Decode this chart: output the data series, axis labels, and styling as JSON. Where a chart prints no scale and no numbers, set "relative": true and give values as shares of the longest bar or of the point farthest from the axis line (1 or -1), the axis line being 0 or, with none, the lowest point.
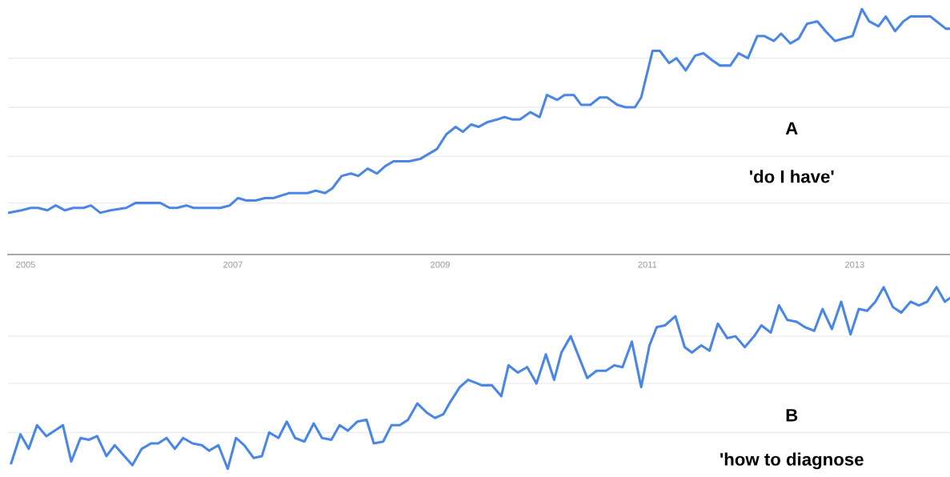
{
  "chart_data": [
    {
      "type": "line",
      "relative": true,
      "grid": "y",
      "tick_labels": "x",
      "xlim": [
        2004.83,
        2013.92
      ],
      "xticks": [
        2005,
        2007,
        2009,
        2011,
        2013
      ],
      "annotations": [
        "A",
        "'do I have'"
      ],
      "series": [
        {
          "color": "#4a86e8",
          "x": [
            2004.84,
            2004.96,
            2005.05,
            2005.12,
            2005.21,
            2005.29,
            2005.38,
            2005.46,
            2005.56,
            2005.63,
            2005.72,
            2005.82,
            2005.97,
            2006.06,
            2006.3,
            2006.39,
            2006.46,
            2006.55,
            2006.62,
            2006.88,
            2006.97,
            2007.05,
            2007.13,
            2007.22,
            2007.31,
            2007.39,
            2007.54,
            2007.72,
            2007.8,
            2007.89,
            2007.96,
            2008.05,
            2008.14,
            2008.21,
            2008.3,
            2008.39,
            2008.47,
            2008.55,
            2008.7,
            2008.81,
            2008.97,
            2009.06,
            2009.15,
            2009.22,
            2009.3,
            2009.37,
            2009.46,
            2009.55,
            2009.62,
            2009.7,
            2009.77,
            2009.87,
            2009.96,
            2010.03,
            2010.13,
            2010.2,
            2010.29,
            2010.36,
            2010.45,
            2010.54,
            2010.61,
            2010.71,
            2010.79,
            2010.88,
            2010.94,
            2011.05,
            2011.12,
            2011.21,
            2011.28,
            2011.37,
            2011.46,
            2011.54,
            2011.63,
            2011.7,
            2011.8,
            2011.88,
            2011.97,
            2012.06,
            2012.13,
            2012.22,
            2012.29,
            2012.38,
            2012.46,
            2012.54,
            2012.64,
            2012.72,
            2012.81,
            2012.98,
            2013.07,
            2013.14,
            2013.23,
            2013.3,
            2013.39,
            2013.47,
            2013.54,
            2013.73,
            2013.88,
            2013.92
          ],
          "values": [
            0.17,
            0.18,
            0.19,
            0.19,
            0.18,
            0.2,
            0.18,
            0.19,
            0.19,
            0.2,
            0.17,
            0.18,
            0.19,
            0.21,
            0.21,
            0.19,
            0.19,
            0.2,
            0.19,
            0.19,
            0.2,
            0.23,
            0.22,
            0.22,
            0.23,
            0.23,
            0.25,
            0.25,
            0.26,
            0.25,
            0.27,
            0.32,
            0.33,
            0.32,
            0.35,
            0.33,
            0.36,
            0.38,
            0.38,
            0.39,
            0.43,
            0.49,
            0.52,
            0.5,
            0.53,
            0.52,
            0.54,
            0.55,
            0.56,
            0.55,
            0.55,
            0.58,
            0.56,
            0.65,
            0.63,
            0.65,
            0.65,
            0.61,
            0.61,
            0.64,
            0.64,
            0.61,
            0.6,
            0.6,
            0.64,
            0.83,
            0.83,
            0.78,
            0.8,
            0.75,
            0.81,
            0.82,
            0.79,
            0.77,
            0.77,
            0.82,
            0.8,
            0.89,
            0.89,
            0.87,
            0.9,
            0.86,
            0.88,
            0.94,
            0.95,
            0.91,
            0.87,
            0.89,
            1,
            0.95,
            0.93,
            0.97,
            0.91,
            0.95,
            0.97,
            0.97,
            0.92,
            0.92
          ]
        }
      ]
    },
    {
      "type": "line",
      "relative": true,
      "grid": "y",
      "tick_labels": false,
      "xlim": [
        2004.83,
        2013.92
      ],
      "xticks": [
        2005,
        2007,
        2009,
        2011,
        2013
      ],
      "annotations": [
        "B",
        "'how to diagnose"
      ],
      "series": [
        {
          "color": "#4a86e8",
          "x": [
            2004.86,
            2004.95,
            2005.03,
            2005.11,
            2005.2,
            2005.36,
            2005.44,
            2005.53,
            2005.61,
            2005.69,
            2005.78,
            2005.86,
            2006.03,
            2006.12,
            2006.21,
            2006.28,
            2006.36,
            2006.44,
            2006.52,
            2006.61,
            2006.7,
            2006.77,
            2006.86,
            2006.95,
            2007.03,
            2007.11,
            2007.2,
            2007.28,
            2007.35,
            2007.44,
            2007.52,
            2007.6,
            2007.69,
            2007.78,
            2007.86,
            2007.95,
            2008.03,
            2008.11,
            2008.2,
            2008.29,
            2008.36,
            2008.45,
            2008.53,
            2008.61,
            2008.69,
            2008.78,
            2008.87,
            2008.95,
            2009.03,
            2009.1,
            2009.19,
            2009.27,
            2009.36,
            2009.4,
            2009.5,
            2009.59,
            2009.66,
            2009.75,
            2009.84,
            2009.93,
            2010.02,
            2010.1,
            2010.17,
            2010.26,
            2010.42,
            2010.51,
            2010.6,
            2010.68,
            2010.76,
            2010.85,
            2010.94,
            2011.02,
            2011.09,
            2011.17,
            2011.27,
            2011.36,
            2011.43,
            2011.52,
            2011.6,
            2011.68,
            2011.77,
            2011.85,
            2011.94,
            2012.03,
            2012.1,
            2012.19,
            2012.27,
            2012.35,
            2012.44,
            2012.52,
            2012.61,
            2012.69,
            2012.78,
            2012.87,
            2012.96,
            2013.04,
            2013.12,
            2013.2,
            2013.28,
            2013.37,
            2013.45,
            2013.54,
            2013.62,
            2013.7,
            2013.79,
            2013.87,
            2013.92
          ],
          "values": [
            0.03,
            0.19,
            0.11,
            0.24,
            0.18,
            0.24,
            0.04,
            0.17,
            0.16,
            0.18,
            0.07,
            0.13,
            0.02,
            0.11,
            0.14,
            0.14,
            0.17,
            0.11,
            0.17,
            0.14,
            0.13,
            0.1,
            0.13,
            0,
            0.17,
            0.13,
            0.06,
            0.07,
            0.2,
            0.17,
            0.26,
            0.17,
            0.15,
            0.25,
            0.17,
            0.16,
            0.24,
            0.21,
            0.26,
            0.27,
            0.14,
            0.15,
            0.24,
            0.24,
            0.27,
            0.36,
            0.31,
            0.28,
            0.3,
            0.37,
            0.45,
            0.49,
            0.47,
            0.46,
            0.46,
            0.4,
            0.57,
            0.53,
            0.56,
            0.47,
            0.63,
            0.49,
            0.64,
            0.73,
            0.5,
            0.54,
            0.54,
            0.57,
            0.56,
            0.7,
            0.45,
            0.68,
            0.78,
            0.79,
            0.84,
            0.67,
            0.64,
            0.68,
            0.65,
            0.8,
            0.72,
            0.73,
            0.67,
            0.73,
            0.79,
            0.75,
            0.9,
            0.82,
            0.81,
            0.78,
            0.76,
            0.88,
            0.77,
            0.92,
            0.74,
            0.88,
            0.87,
            0.92,
            1,
            0.89,
            0.86,
            0.92,
            0.9,
            0.92,
            1,
            0.92,
            0.94
          ]
        }
      ]
    }
  ]
}
